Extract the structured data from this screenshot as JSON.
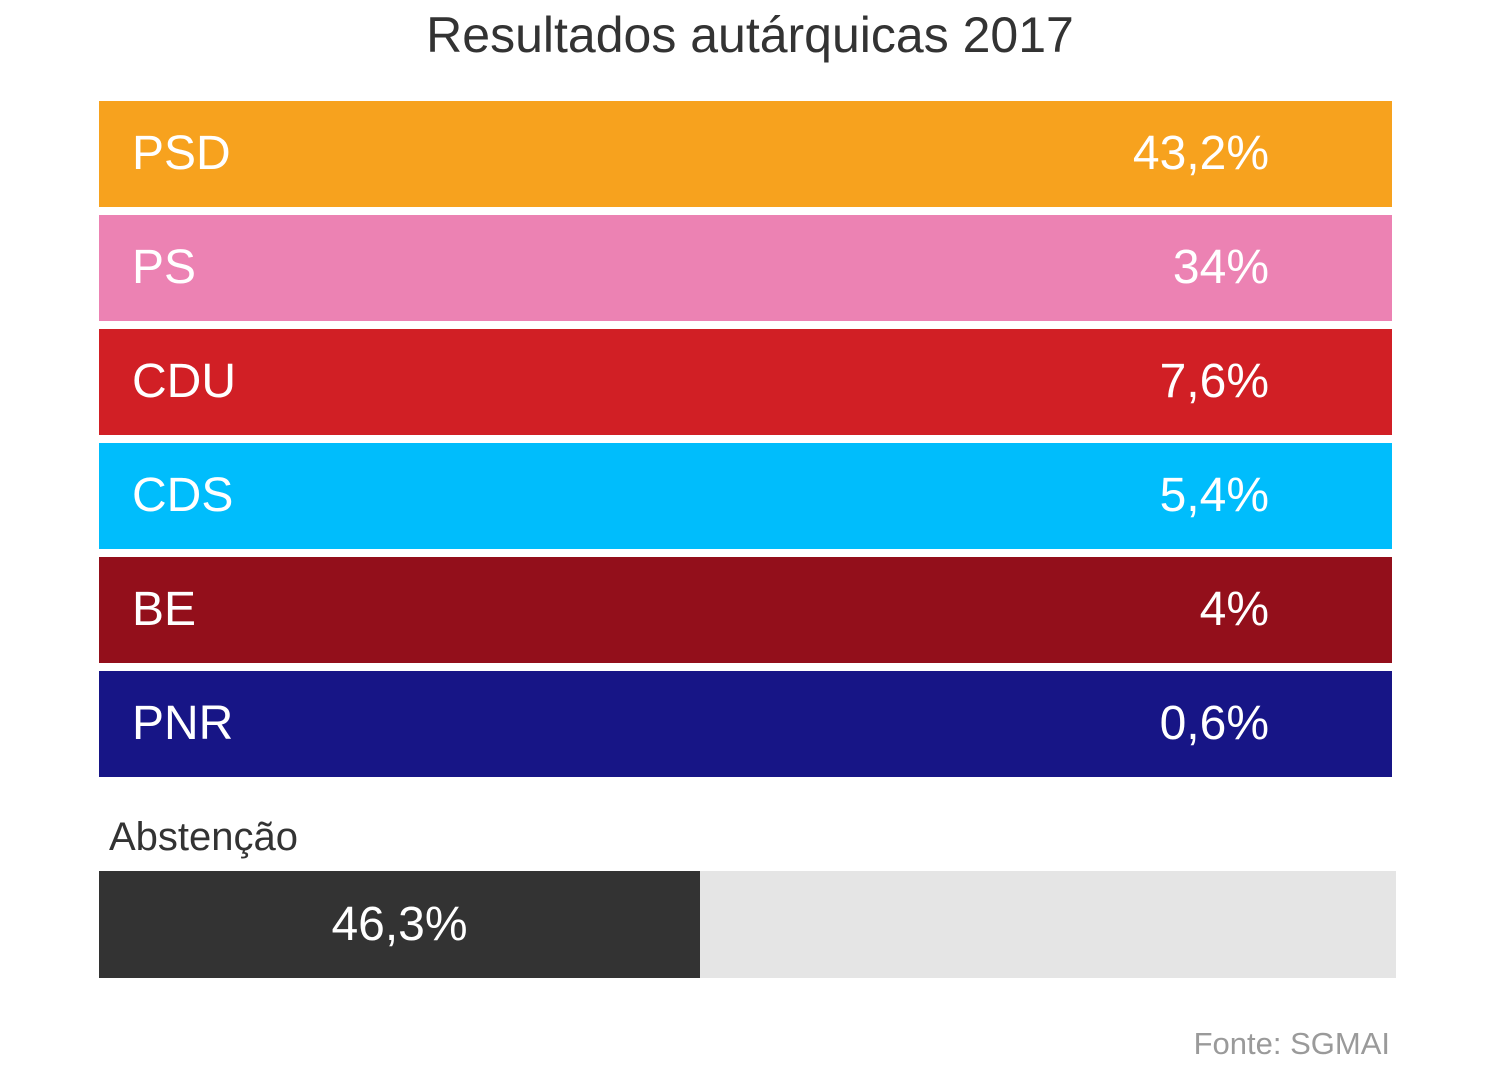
{
  "chart_data": {
    "type": "table",
    "title": "Resultados autárquicas 2017",
    "parties": [
      {
        "name": "PSD",
        "label": "43,2%",
        "value": 43.2,
        "color": "#f7a21e"
      },
      {
        "name": "PS",
        "label": "34%",
        "value": 34,
        "color": "#ec82b3"
      },
      {
        "name": "CDU",
        "label": "7,6%",
        "value": 7.6,
        "color": "#d11f25"
      },
      {
        "name": "CDS",
        "label": "5,4%",
        "value": 5.4,
        "color": "#00bdfc"
      },
      {
        "name": "BE",
        "label": "4%",
        "value": 4,
        "color": "#930f1b"
      },
      {
        "name": "PNR",
        "label": "0,6%",
        "value": 0.6,
        "color": "#171586"
      }
    ],
    "abstention": {
      "label": "Abstenção",
      "value": 46.3,
      "value_label": "46,3%",
      "max": 100,
      "fill_color": "#333333",
      "track_color": "#e5e5e5"
    },
    "source": "Fonte: SGMAI"
  }
}
